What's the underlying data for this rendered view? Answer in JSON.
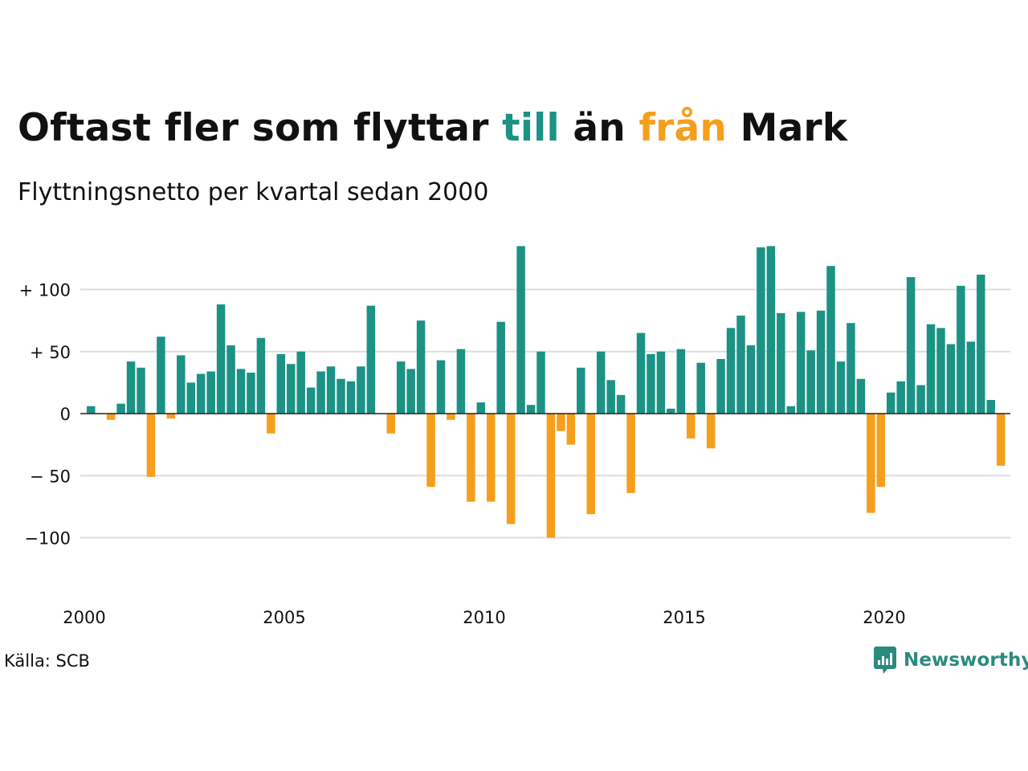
{
  "header": {
    "title_pre": "Oftast fler som flyttar ",
    "title_in": "till",
    "title_mid": " än ",
    "title_out": "från",
    "title_post": " Mark",
    "subtitle": "Flyttningsnetto per kvartal sedan 2000"
  },
  "colors": {
    "positive": "#1c9285",
    "negative": "#f59f1c",
    "grid": "#dddddd",
    "text": "#111111",
    "logo": "#2b8a7e"
  },
  "footer": {
    "source": "Källa: SCB",
    "logo_text": "Newsworthy",
    "logo_icon": "bar-chart-speech-bubble-icon"
  },
  "chart_data": {
    "type": "bar",
    "title": "Oftast fler som flyttar till än från Mark",
    "subtitle": "Flyttningsnetto per kvartal sedan 2000",
    "x_start": 2000,
    "periods_per_year": 4,
    "x_ticks": [
      "2000",
      "2005",
      "2010",
      "2015",
      "2020"
    ],
    "y_ticks": [
      {
        "value": 100,
        "label": "+ 100"
      },
      {
        "value": 50,
        "label": "+  50"
      },
      {
        "value": 0,
        "label": "0"
      },
      {
        "value": -50,
        "label": "− 50"
      },
      {
        "value": -100,
        "label": "−100"
      }
    ],
    "ylim": [
      -100,
      135
    ],
    "grid": true,
    "values": [
      6,
      0,
      -5,
      8,
      42,
      37,
      -51,
      62,
      -4,
      47,
      25,
      32,
      34,
      88,
      55,
      36,
      33,
      61,
      -16,
      48,
      40,
      50,
      21,
      34,
      38,
      28,
      26,
      38,
      87,
      0,
      -16,
      42,
      36,
      75,
      -59,
      43,
      -5,
      52,
      -71,
      9,
      -71,
      74,
      -89,
      135,
      7,
      50,
      -100,
      -14,
      -25,
      37,
      -81,
      50,
      27,
      15,
      -64,
      65,
      48,
      50,
      4,
      52,
      -20,
      41,
      -28,
      44,
      69,
      79,
      55,
      134,
      135,
      81,
      6,
      82,
      51,
      83,
      119,
      42,
      73,
      28,
      -80,
      -59,
      17,
      26,
      110,
      23,
      72,
      69,
      56,
      103,
      58,
      112,
      11,
      -42
    ]
  }
}
